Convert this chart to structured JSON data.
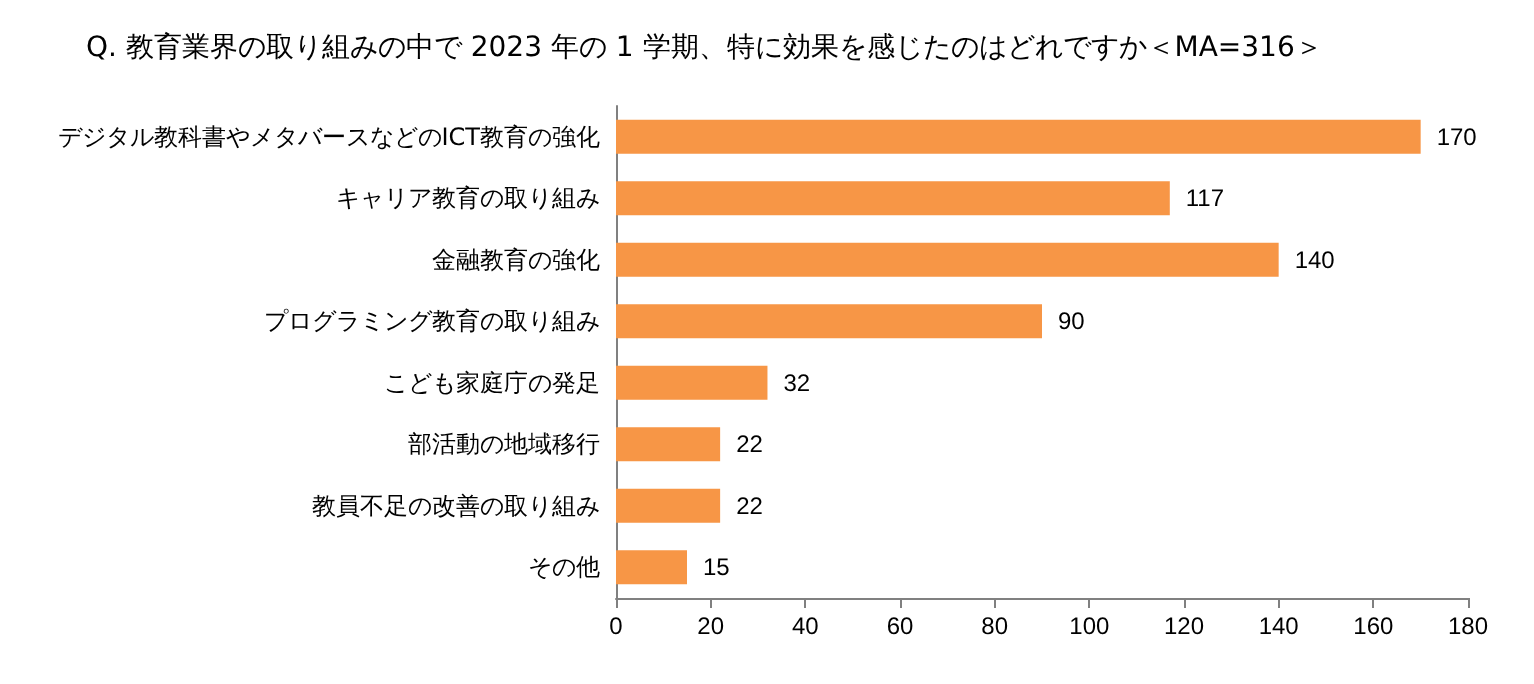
{
  "chart_data": {
    "type": "bar",
    "orientation": "horizontal",
    "title": "Q. 教育業界の取り組みの中で 2023 年の 1 学期、特に効果を感じたのはどれですか＜MA=316＞",
    "categories": [
      "デジタル教科書やメタバースなどのICT教育の強化",
      "キャリア教育の取り組み",
      "金融教育の強化",
      "プログラミング教育の取り組み",
      "こども家庭庁の発足",
      "部活動の地域移行",
      "教員不足の改善の取り組み",
      "その他"
    ],
    "values": [
      170,
      117,
      140,
      90,
      32,
      22,
      22,
      15
    ],
    "color": "#f79646",
    "xlim": [
      0,
      180
    ],
    "xticks": [
      0,
      20,
      40,
      60,
      80,
      100,
      120,
      140,
      160,
      180
    ],
    "data_labels": true
  }
}
